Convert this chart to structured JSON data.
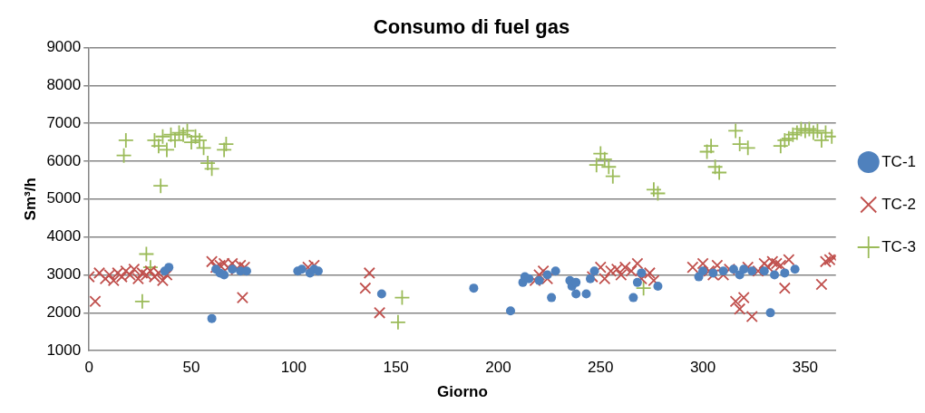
{
  "chart_data": {
    "type": "scatter",
    "title": "Consumo di fuel gas",
    "xlabel": "Giorno",
    "ylabel": "Sm³/h",
    "xlim": [
      0,
      365
    ],
    "xticks": [
      0,
      50,
      100,
      150,
      200,
      250,
      300,
      350
    ],
    "ylim": [
      1000,
      9000
    ],
    "yticks": [
      1000,
      2000,
      3000,
      4000,
      5000,
      6000,
      7000,
      8000,
      9000
    ],
    "grid": "y",
    "legend": "right",
    "series": [
      {
        "name": "TC-1",
        "color": "#4f81bd",
        "marker": "circle",
        "x": [
          37,
          39,
          60,
          62,
          64,
          66,
          70,
          74,
          77,
          102,
          104,
          108,
          110,
          112,
          143,
          188,
          206,
          212,
          213,
          215,
          220,
          224,
          226,
          228,
          235,
          236,
          238,
          238,
          243,
          245,
          247,
          266,
          268,
          270,
          278,
          298,
          300,
          305,
          310,
          315,
          318,
          320,
          324,
          330,
          333,
          335,
          340,
          345
        ],
        "values": [
          3100,
          3200,
          1850,
          3150,
          3050,
          3000,
          3150,
          3100,
          3100,
          3100,
          3150,
          3050,
          3150,
          3100,
          2500,
          2650,
          2050,
          2800,
          2950,
          2900,
          2850,
          3000,
          2400,
          3100,
          2850,
          2700,
          2800,
          2500,
          2500,
          2900,
          3100,
          2400,
          2800,
          3050,
          2700,
          2950,
          3100,
          3050,
          3100,
          3150,
          3000,
          3150,
          3100,
          3100,
          2000,
          3000,
          3050,
          3150
        ]
      },
      {
        "name": "TC-2",
        "color": "#c0504d",
        "marker": "cross",
        "x": [
          0,
          3,
          5,
          8,
          10,
          12,
          14,
          16,
          18,
          20,
          22,
          24,
          26,
          28,
          30,
          32,
          34,
          36,
          38,
          60,
          62,
          64,
          66,
          68,
          70,
          72,
          74,
          75,
          76,
          107,
          110,
          135,
          137,
          142,
          218,
          220,
          222,
          224,
          246,
          250,
          252,
          255,
          258,
          260,
          262,
          265,
          268,
          270,
          274,
          276,
          295,
          300,
          303,
          305,
          307,
          310,
          313,
          316,
          318,
          320,
          322,
          324,
          327,
          330,
          332,
          334,
          336,
          338,
          340,
          342,
          358,
          360,
          362,
          364
        ],
        "values": [
          2950,
          2300,
          3050,
          2900,
          3000,
          2850,
          3050,
          2950,
          3100,
          3000,
          3150,
          2900,
          3050,
          3000,
          3100,
          2950,
          3050,
          2850,
          3000,
          3350,
          3200,
          3250,
          3300,
          3200,
          3300,
          3150,
          3250,
          2400,
          3200,
          3200,
          3250,
          2650,
          3050,
          2000,
          2850,
          3000,
          3100,
          2900,
          2950,
          3200,
          2900,
          3100,
          3150,
          3000,
          3200,
          3100,
          3300,
          2900,
          3050,
          2850,
          3200,
          3300,
          3100,
          3000,
          3250,
          3000,
          3150,
          2300,
          2100,
          2400,
          3200,
          1900,
          3100,
          3300,
          3200,
          3350,
          3300,
          3250,
          2650,
          3400,
          2750,
          3350,
          3400,
          3450
        ]
      },
      {
        "name": "TC-3",
        "color": "#9bbb59",
        "marker": "plus",
        "x": [
          17,
          18,
          26,
          28,
          30,
          32,
          34,
          35,
          36,
          38,
          40,
          42,
          44,
          46,
          48,
          50,
          52,
          54,
          56,
          58,
          60,
          66,
          67,
          151,
          153,
          248,
          250,
          252,
          254,
          256,
          271,
          276,
          278,
          302,
          304,
          306,
          308,
          316,
          318,
          322,
          338,
          340,
          342,
          344,
          346,
          348,
          350,
          352,
          354,
          356,
          358,
          360,
          363
        ],
        "values": [
          6150,
          6550,
          2300,
          3550,
          3200,
          6550,
          6400,
          5350,
          6650,
          6300,
          6700,
          6550,
          6750,
          6700,
          6800,
          6500,
          6650,
          6550,
          6350,
          5950,
          5800,
          6300,
          6450,
          1750,
          2400,
          5900,
          6200,
          6050,
          5850,
          5600,
          2650,
          5250,
          5150,
          6250,
          6400,
          5850,
          5700,
          6800,
          6450,
          6350,
          6400,
          6550,
          6600,
          6700,
          6750,
          6850,
          6800,
          6850,
          6750,
          6800,
          6550,
          6750,
          6650
        ]
      }
    ]
  }
}
